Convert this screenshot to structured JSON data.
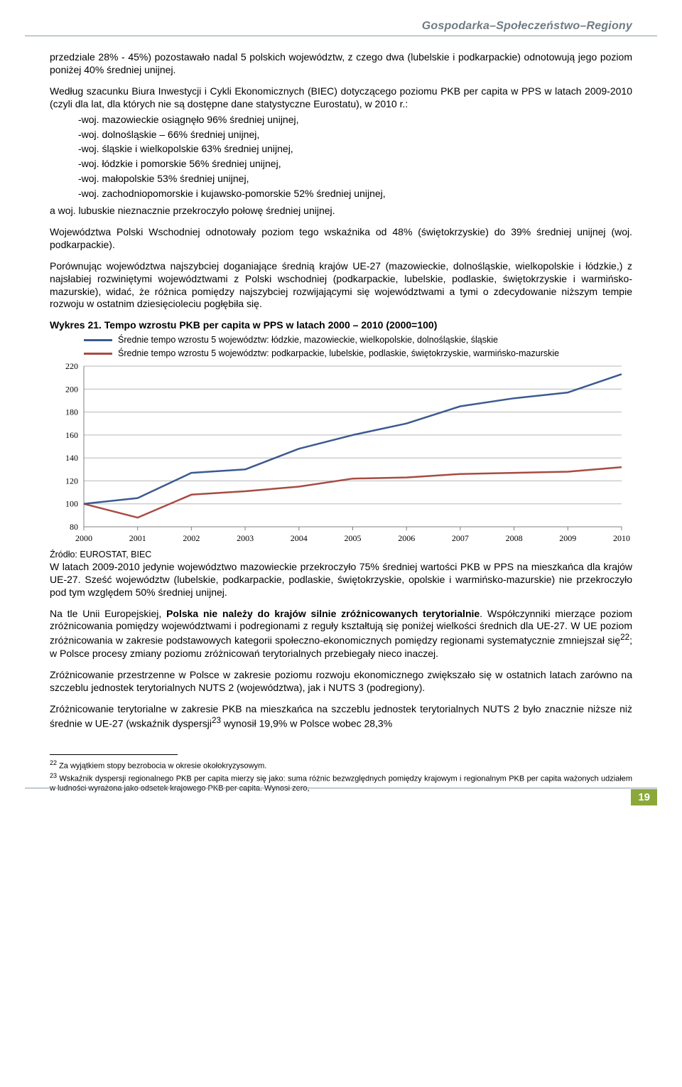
{
  "header": {
    "title": "Gospodarka–Społeczeństwo–Regiony"
  },
  "paragraphs": {
    "p1": "przedziale 28% - 45%) pozostawało nadal 5 polskich województw, z czego dwa (lubelskie i podkarpackie) odnotowują jego poziom poniżej 40% średniej unijnej.",
    "p2": "Według szacunku Biura Inwestycji i Cykli Ekonomicznych (BIEC) dotyczącego poziomu PKB per capita w PPS w latach 2009-2010 (czyli dla lat, dla których nie są dostępne dane statystyczne Eurostatu), w 2010 r.:",
    "list": [
      "-woj. mazowieckie osiągnęło 96% średniej unijnej,",
      "-woj. dolnośląskie – 66% średniej unijnej,",
      "-woj. śląskie i wielkopolskie 63% średniej unijnej,",
      "-woj. łódzkie i pomorskie 56% średniej unijnej,",
      "-woj. małopolskie 53% średniej unijnej,",
      "-woj. zachodniopomorskie i kujawsko-pomorskie 52% średniej unijnej,"
    ],
    "p3": "a woj. lubuskie nieznacznie przekroczyło połowę średniej unijnej.",
    "p4": "Województwa Polski Wschodniej odnotowały poziom tego wskaźnika od 48% (świętokrzyskie) do 39% średniej unijnej (woj. podkarpackie).",
    "p5": "Porównując województwa najszybciej doganiające średnią krajów UE-27 (mazowieckie, dolnośląskie, wielkopolskie i łódzkie,) z najsłabiej rozwiniętymi województwami z Polski wschodniej (podkarpackie, lubelskie, podlaskie, świętokrzyskie i warmińsko-mazurskie), widać, że różnica pomiędzy najszybciej rozwijającymi się województwami a tymi o zdecydowanie niższym tempie rozwoju w ostatnim dziesięcioleciu pogłębiła się.",
    "chartTitlePrefix": "Wykres 21.",
    "chartTitle": "Tempo wzrostu PKB per capita w PPS w latach 2000 – 2010 (2000=100)",
    "p6": "W latach 2009-2010 jedynie województwo mazowieckie przekroczyło 75% średniej wartości PKB w PPS na mieszkańca dla krajów UE-27. Sześć województw (lubelskie, podkarpackie, podlaskie, świętokrzyskie, opolskie i warmińsko-mazurskie) nie przekroczyło pod tym względem 50% średniej unijnej.",
    "p7a": "Na tle Unii Europejskiej, ",
    "p7b": "Polska nie należy do krajów silnie zróżnicowanych terytorialnie",
    "p7c": ". Współczynniki mierzące poziom zróżnicowania pomiędzy województwami i podregionami z reguły kształtują się poniżej wielkości średnich dla UE-27. W UE poziom zróżnicowania w zakresie podstawowych kategorii społeczno-ekonomicznych pomiędzy regionami systematycznie zmniejszał się",
    "p7sup": "22",
    "p7d": "; w Polsce procesy zmiany poziomu zróżnicowań terytorialnych przebiegały nieco inaczej.",
    "p8": "Zróżnicowanie przestrzenne w Polsce w zakresie poziomu rozwoju ekonomicznego zwiększało się w ostatnich latach zarówno na szczeblu jednostek terytorialnych NUTS 2 (województwa), jak i NUTS 3 (podregiony).",
    "p9a": "Zróżnicowanie terytorialne w zakresie PKB na mieszkańca na szczeblu jednostek terytorialnych NUTS 2 było znacznie niższe niż średnie w UE-27 (wskaźnik dyspersji",
    "p9sup": "23",
    "p9b": " wynosił 19,9% w Polsce wobec 28,3%"
  },
  "chart": {
    "type": "line",
    "legend": {
      "series1": "Średnie tempo wzrostu 5 województw: łódzkie, mazowieckie, wielkopolskie, dolnośląskie, śląskie",
      "series2": "Średnie tempo wzrostu 5 województw: podkarpackie, lubelskie, podlaskie, świętokrzyskie, warmińsko-mazurskie"
    },
    "colors": {
      "series1": "#3c5a91",
      "series2": "#a84b42",
      "grid": "#b7b7b7",
      "axis": "#808080",
      "background": "#ffffff",
      "text": "#000000"
    },
    "x_labels": [
      "2000",
      "2001",
      "2002",
      "2003",
      "2004",
      "2005",
      "2006",
      "2007",
      "2008",
      "2009",
      "2010"
    ],
    "y_min": 80,
    "y_max": 220,
    "y_step": 20,
    "series1_values": [
      100,
      105,
      127,
      130,
      148,
      160,
      170,
      185,
      192,
      197,
      213
    ],
    "series2_values": [
      100,
      88,
      108,
      111,
      115,
      122,
      123,
      126,
      127,
      128,
      132
    ],
    "line_width": 2.5,
    "source": "Źródło: EUROSTAT, BIEC",
    "tick_font_size": 12
  },
  "footnotes": {
    "fn22": "Za wyjątkiem stopy bezrobocia w okresie okołokryzysowym.",
    "fn23": "Wskaźnik dyspersji regionalnego PKB per capita mierzy się jako: suma różnic bezwzględnych pomiędzy krajowym i regionalnym PKB per capita ważonych udziałem w ludności wyrażona jako odsetek krajowego PKB per capita. Wynosi zero,"
  },
  "pageNumber": "19"
}
